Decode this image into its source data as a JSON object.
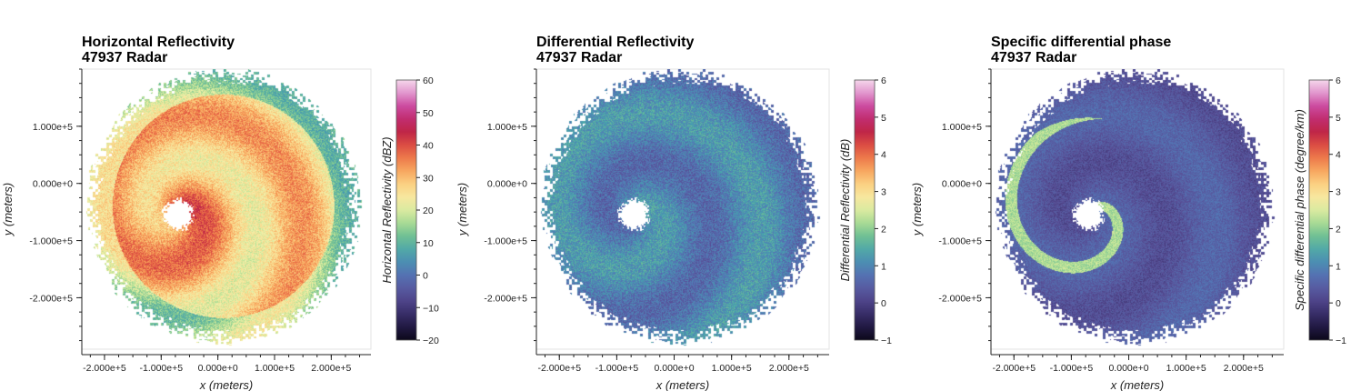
{
  "figure": {
    "background": "#ffffff"
  },
  "chart_data": [
    {
      "type": "heatmap",
      "title_line1": "Horizontal Reflectivity",
      "title_line2": " 47937 Radar",
      "xlabel": "x (meters)",
      "ylabel": "y (meters)",
      "xlim": [
        -240000,
        270000
      ],
      "ylim": [
        -290000,
        200000
      ],
      "x_ticks": [
        -200000,
        -100000,
        0,
        100000,
        200000
      ],
      "x_tick_labels": [
        "-2.000e+5",
        "-1.000e+5",
        "0.000e+0",
        "1.000e+5",
        "2.000e+5"
      ],
      "y_ticks": [
        -200000,
        -100000,
        0,
        100000
      ],
      "y_tick_labels": [
        "-2.000e+5",
        "-1.000e+5",
        "0.000e+0",
        "1.000e+5"
      ],
      "colorbar": {
        "label": "Horizontal Reflectivity (dBZ)",
        "min": -20,
        "max": 60,
        "ticks": [
          -20,
          -10,
          0,
          10,
          20,
          30,
          40,
          50,
          60
        ],
        "tick_labels": [
          "−20",
          "−10",
          "0",
          "10",
          "20",
          "30",
          "40",
          "50",
          "60"
        ],
        "colormap": "spectral_r"
      },
      "field": "reflectivity",
      "storm_center": [
        -70000,
        -55000
      ],
      "eye_radius": 25000,
      "coverage_radius": 230000
    },
    {
      "type": "heatmap",
      "title_line1": "Differential Reflectivity",
      "title_line2": " 47937 Radar",
      "xlabel": "x (meters)",
      "ylabel": "y (meters)",
      "xlim": [
        -240000,
        270000
      ],
      "ylim": [
        -290000,
        200000
      ],
      "x_ticks": [
        -200000,
        -100000,
        0,
        100000,
        200000
      ],
      "x_tick_labels": [
        "-2.000e+5",
        "-1.000e+5",
        "0.000e+0",
        "1.000e+5",
        "2.000e+5"
      ],
      "y_ticks": [
        -200000,
        -100000,
        0,
        100000
      ],
      "y_tick_labels": [
        "-2.000e+5",
        "-1.000e+5",
        "0.000e+0",
        "1.000e+5"
      ],
      "colorbar": {
        "label": "Differential Reflectivity (dB)",
        "min": -1,
        "max": 6,
        "ticks": [
          -1,
          0,
          1,
          2,
          3,
          4,
          5,
          6
        ],
        "tick_labels": [
          "−1",
          "0",
          "1",
          "2",
          "3",
          "4",
          "5",
          "6"
        ],
        "colormap": "spectral_r"
      },
      "field": "zdr",
      "storm_center": [
        -70000,
        -55000
      ],
      "eye_radius": 25000,
      "coverage_radius": 230000
    },
    {
      "type": "heatmap",
      "title_line1": "Specific differential phase",
      "title_line2": " 47937 Radar",
      "xlabel": "x (meters)",
      "ylabel": "y (meters)",
      "xlim": [
        -240000,
        270000
      ],
      "ylim": [
        -290000,
        200000
      ],
      "x_ticks": [
        -200000,
        -100000,
        0,
        100000,
        200000
      ],
      "x_tick_labels": [
        "-2.000e+5",
        "-1.000e+5",
        "0.000e+0",
        "1.000e+5",
        "2.000e+5"
      ],
      "y_ticks": [
        -200000,
        -100000,
        0,
        100000
      ],
      "y_tick_labels": [
        "-2.000e+5",
        "-1.000e+5",
        "0.000e+0",
        "1.000e+5"
      ],
      "colorbar": {
        "label": "Specific differential phase (degree/km)",
        "min": -1,
        "max": 6,
        "ticks": [
          -1,
          0,
          1,
          2,
          3,
          4,
          5,
          6
        ],
        "tick_labels": [
          "−1",
          "0",
          "1",
          "2",
          "3",
          "4",
          "5",
          "6"
        ],
        "colormap": "spectral_r"
      },
      "field": "kdp",
      "storm_center": [
        -70000,
        -55000
      ],
      "eye_radius": 25000,
      "coverage_radius": 230000
    }
  ]
}
